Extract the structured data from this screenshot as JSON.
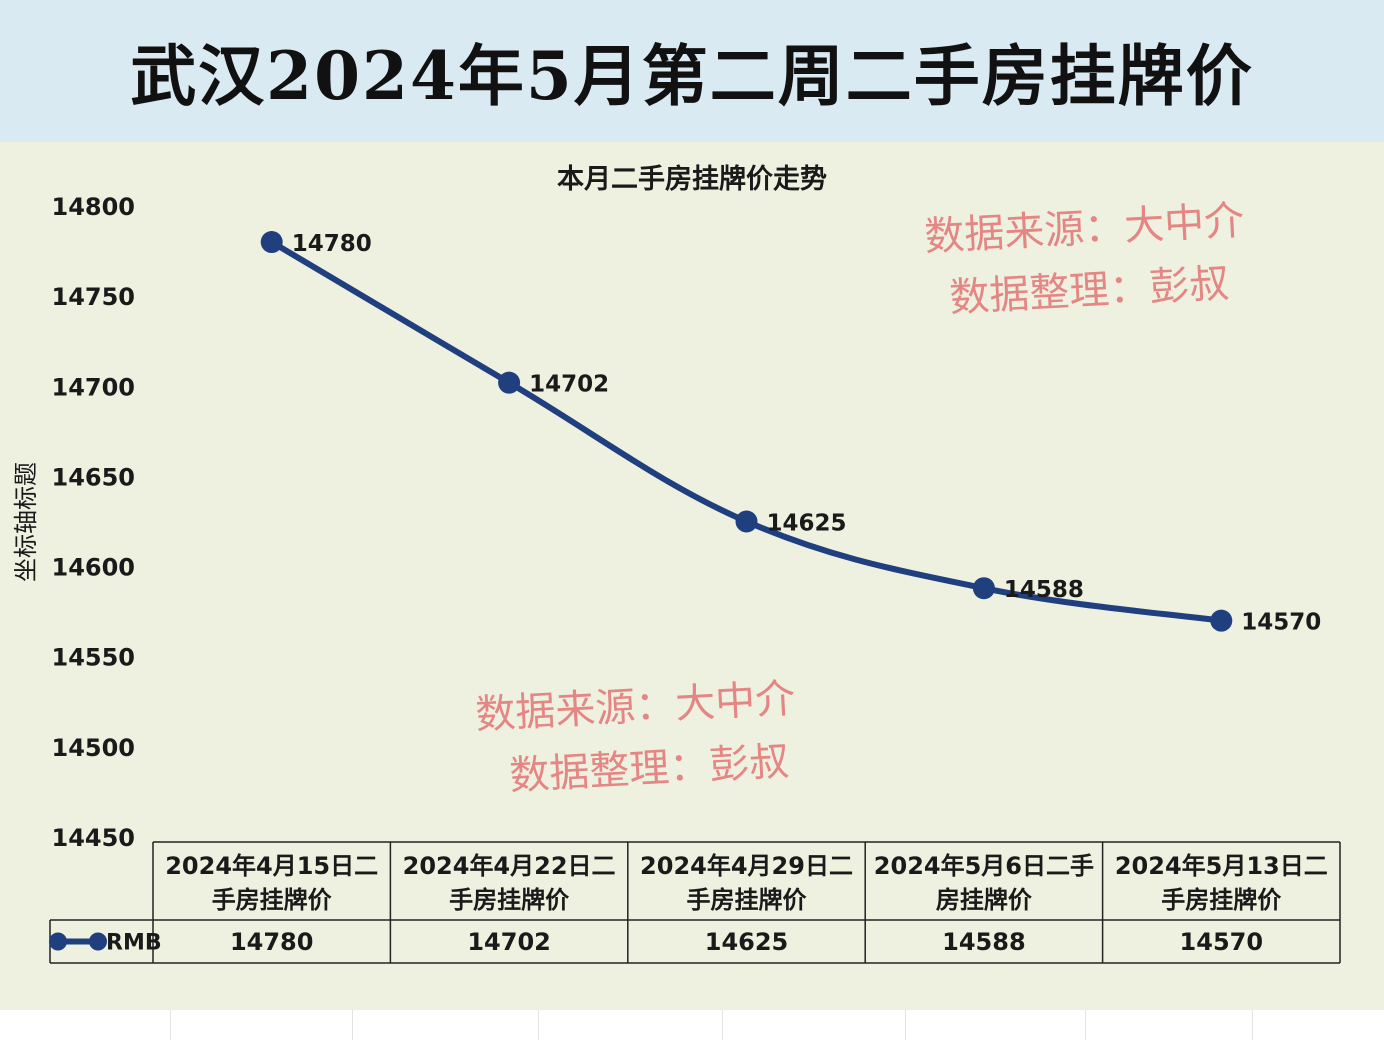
{
  "page": {
    "title": "武汉2024年5月第二周二手房挂牌价"
  },
  "watermarks": [
    {
      "line1": "数据来源：大中介",
      "line2": "数据整理：彭叔"
    },
    {
      "line1": "数据来源：大中介",
      "line2": "数据整理：彭叔"
    }
  ],
  "colors": {
    "title_banner": "#daeaf3",
    "plot_background": "#eef0e0",
    "series_line": "#1f3f7f",
    "watermark": "#e47b7b"
  },
  "chart_data": {
    "type": "line",
    "title": "本月二手房挂牌价走势",
    "ylabel": "坐标轴标题",
    "xlabel": "",
    "ylim": [
      14450,
      14800
    ],
    "yticks": [
      14800,
      14750,
      14700,
      14650,
      14600,
      14550,
      14500,
      14450
    ],
    "categories": [
      [
        "2024年4月15日二",
        "手房挂牌价"
      ],
      [
        "2024年4月22日二",
        "手房挂牌价"
      ],
      [
        "2024年4月29日二",
        "手房挂牌价"
      ],
      [
        "2024年5月6日二手",
        "房挂牌价"
      ],
      [
        "2024年5月13日二",
        "手房挂牌价"
      ]
    ],
    "series": [
      {
        "name": "RMB",
        "values": [
          14780,
          14702,
          14625,
          14588,
          14570
        ]
      }
    ],
    "smooth": true,
    "data_labels": true,
    "grid": false,
    "legend": "data-table"
  }
}
